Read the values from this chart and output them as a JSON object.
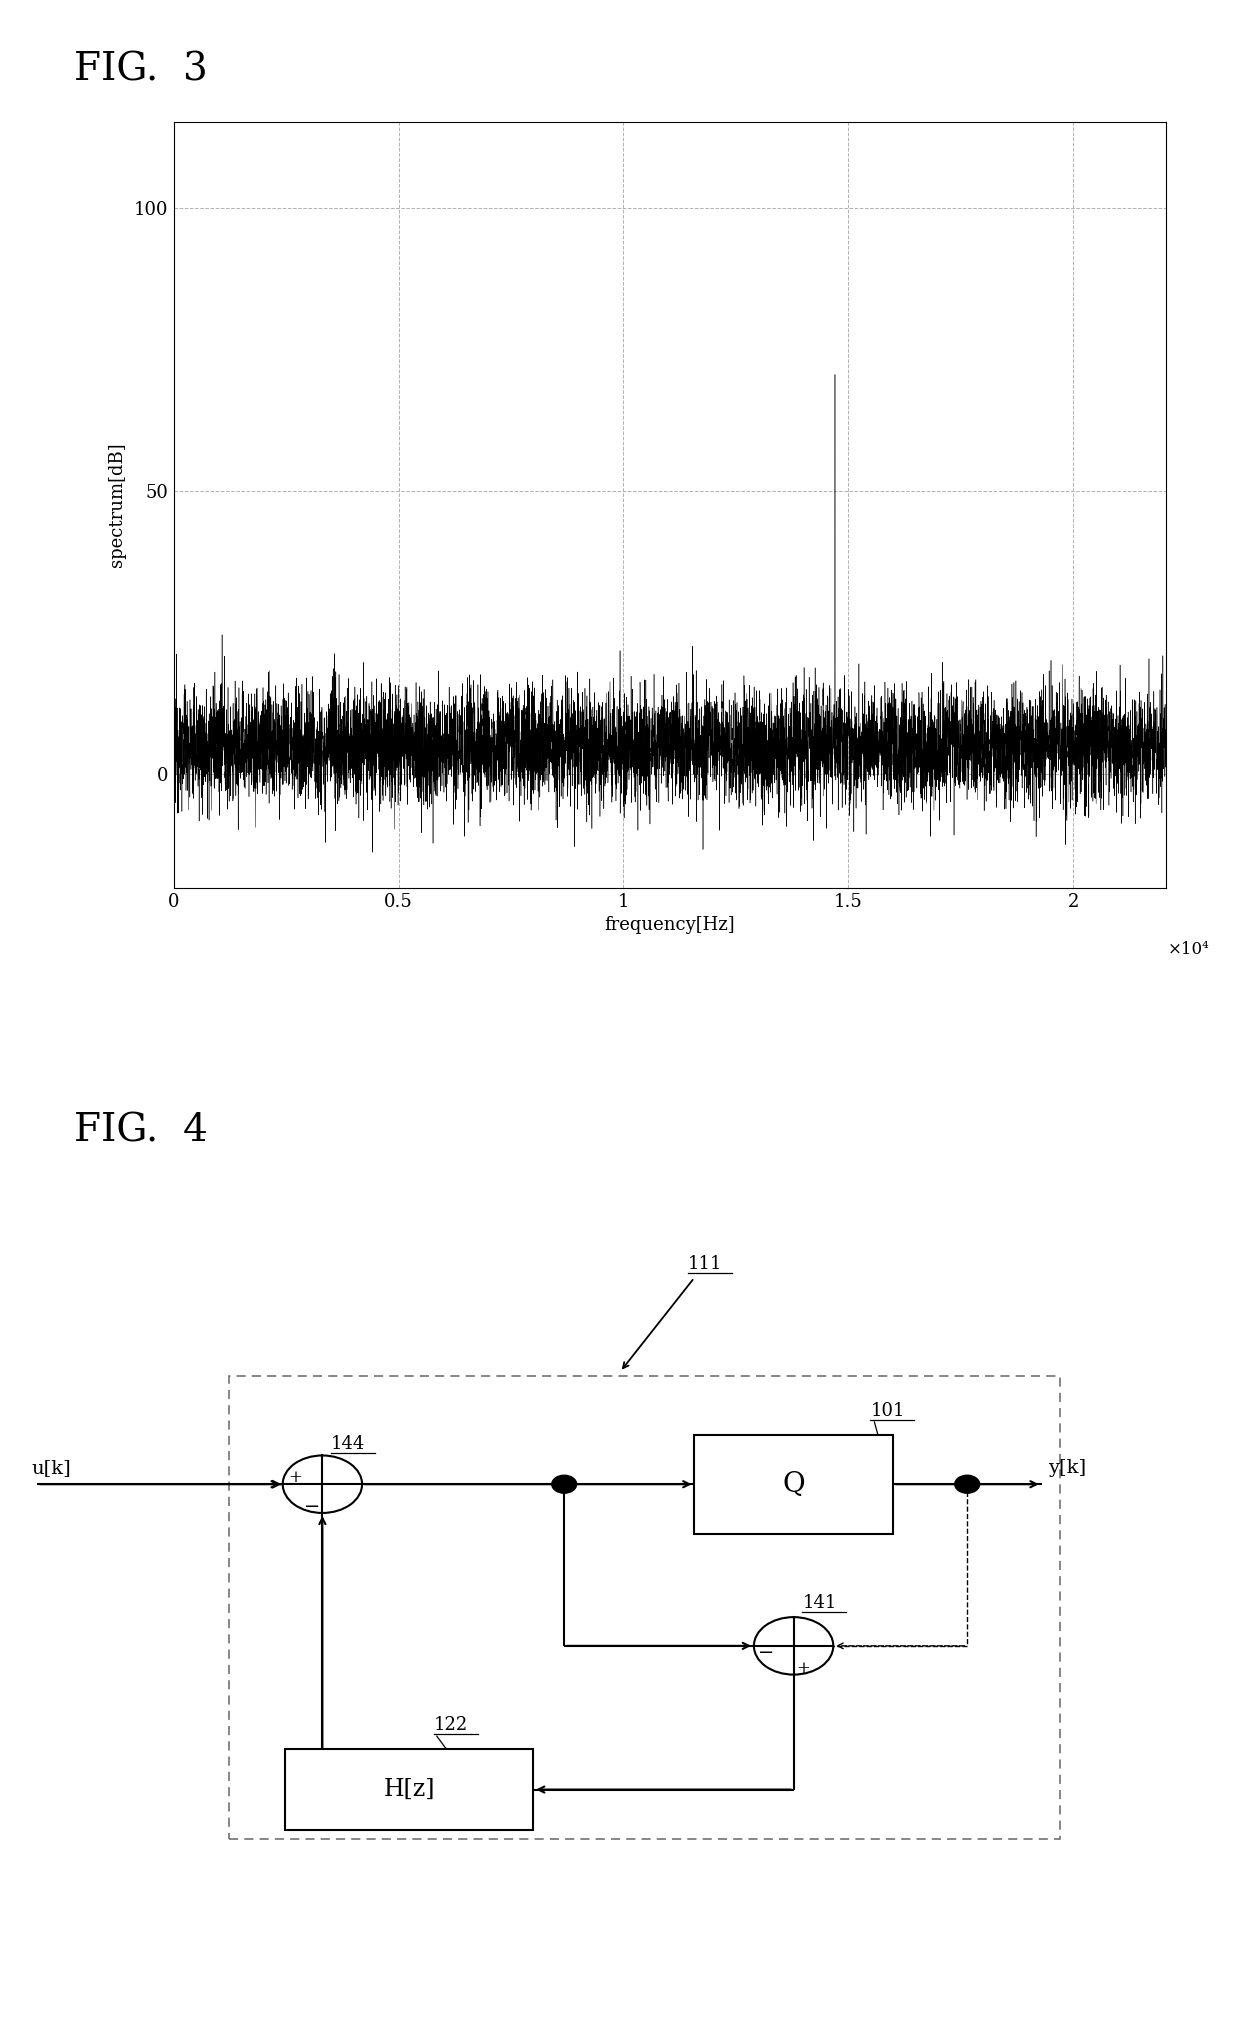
{
  "fig3_title": "FIG.  3",
  "fig4_title": "FIG.  4",
  "spectrum_ylabel": "spectrum[dB]",
  "spectrum_xlabel": "frequency[Hz]",
  "spectrum_xlim": [
    0,
    22050
  ],
  "spectrum_ylim": [
    -20,
    115
  ],
  "spectrum_yticks": [
    0,
    50,
    100
  ],
  "spectrum_xticks": [
    0,
    5000,
    10000,
    15000,
    20000
  ],
  "spectrum_xtick_labels": [
    "0",
    "0.5",
    "1",
    "1.5",
    "2"
  ],
  "spectrum_x10_label": "×10⁴",
  "background_color": "#ffffff",
  "line_color": "#000000",
  "grid_color": "#aaaaaa"
}
